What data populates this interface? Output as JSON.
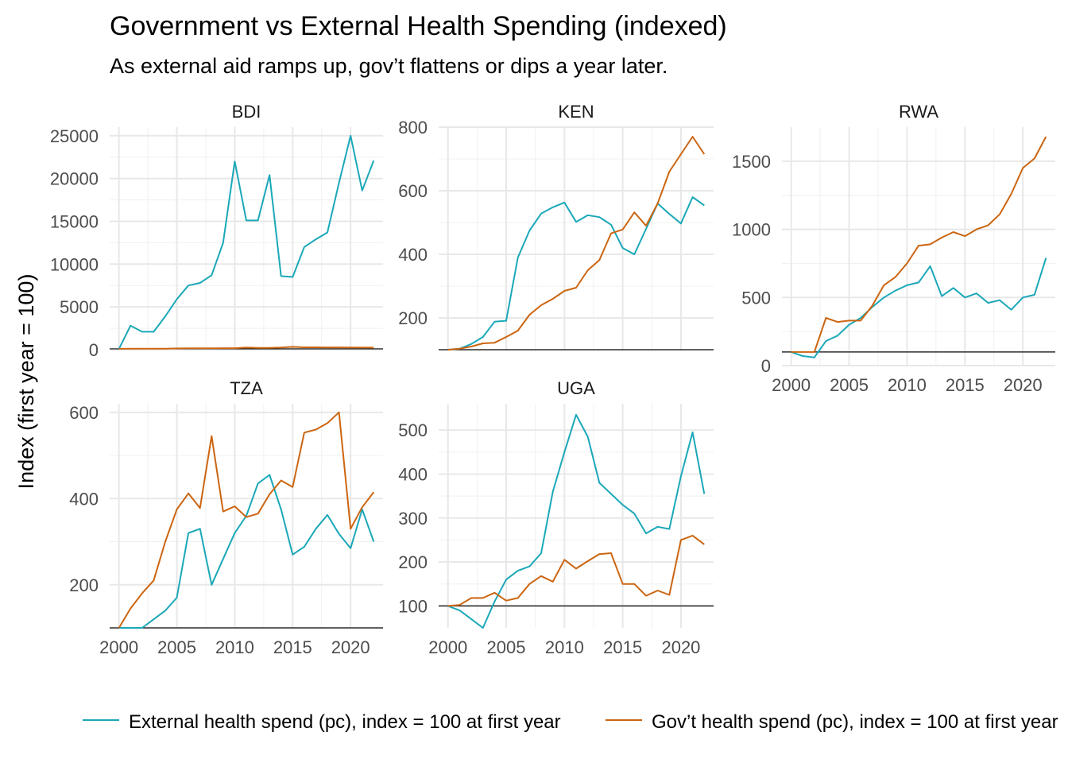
{
  "chart_data": {
    "type": "line",
    "title": "Government vs External Health Spending (indexed)",
    "subtitle": "As external aid ramps up, gov’t flattens or dips a year later.",
    "ylabel": "Index (first year = 100)",
    "xlabel": "",
    "grid": true,
    "legend_position": "bottom",
    "reference_line": 100,
    "colors": {
      "external": "#1ba8b8",
      "government": "#cc6511"
    },
    "legend": [
      {
        "key": "external",
        "label": "External health spend (pc), index = 100 at first year"
      },
      {
        "key": "government",
        "label": "Gov’t health spend (pc), index = 100 at first year"
      }
    ],
    "years": [
      2000,
      2001,
      2002,
      2003,
      2004,
      2005,
      2006,
      2007,
      2008,
      2009,
      2010,
      2011,
      2012,
      2013,
      2014,
      2015,
      2016,
      2017,
      2018,
      2019,
      2020,
      2021,
      2022
    ],
    "panels": [
      {
        "name": "BDI",
        "xlim": [
          1999.2,
          2022.8
        ],
        "ylim": [
          0,
          26000
        ],
        "yticks": [
          0,
          5000,
          10000,
          15000,
          20000,
          25000
        ],
        "xticks": [],
        "series": {
          "external": [
            100,
            2800,
            2100,
            2100,
            3900,
            5900,
            7500,
            7800,
            8700,
            12500,
            22000,
            15100,
            15100,
            20400,
            8600,
            8500,
            12000,
            12900,
            13700,
            19500,
            25000,
            18600,
            22100
          ],
          "government": [
            100,
            110,
            110,
            110,
            120,
            150,
            160,
            160,
            170,
            180,
            180,
            250,
            200,
            200,
            260,
            330,
            280,
            280,
            270,
            270,
            260,
            250,
            240
          ]
        }
      },
      {
        "name": "KEN",
        "xlim": [
          1999.2,
          2022.8
        ],
        "ylim": [
          100,
          800
        ],
        "yticks": [
          200,
          400,
          600,
          800
        ],
        "xticks": [],
        "series": {
          "external": [
            100,
            103,
            118,
            140,
            188,
            191,
            390,
            475,
            528,
            548,
            563,
            502,
            523,
            517,
            493,
            420,
            400,
            480,
            560,
            527,
            497,
            580,
            554
          ],
          "government": [
            100,
            103,
            110,
            120,
            122,
            140,
            160,
            210,
            240,
            260,
            285,
            295,
            350,
            382,
            466,
            478,
            532,
            490,
            560,
            660,
            715,
            770,
            715
          ]
        }
      },
      {
        "name": "RWA",
        "xlim": [
          1999.2,
          2022.8
        ],
        "ylim": [
          0,
          1750
        ],
        "yticks": [
          0,
          500,
          1000,
          1500
        ],
        "xticks": [
          2000,
          2005,
          2010,
          2015,
          2020
        ],
        "series": {
          "external": [
            100,
            70,
            60,
            180,
            220,
            300,
            350,
            430,
            500,
            550,
            590,
            610,
            730,
            510,
            570,
            500,
            530,
            460,
            480,
            410,
            500,
            520,
            790
          ],
          "government": [
            100,
            100,
            100,
            350,
            320,
            330,
            330,
            440,
            590,
            650,
            750,
            880,
            890,
            940,
            980,
            950,
            1000,
            1030,
            1110,
            1260,
            1450,
            1520,
            1680
          ]
        }
      },
      {
        "name": "TZA",
        "xlim": [
          1999.2,
          2022.8
        ],
        "ylim": [
          100,
          620
        ],
        "yticks": [
          200,
          400,
          600
        ],
        "xticks": [
          2000,
          2005,
          2010,
          2015,
          2020
        ],
        "series": {
          "external": [
            100,
            100,
            100,
            120,
            140,
            170,
            320,
            330,
            200,
            260,
            320,
            360,
            435,
            455,
            375,
            270,
            288,
            330,
            362,
            318,
            285,
            375,
            300
          ],
          "government": [
            100,
            145,
            180,
            210,
            300,
            375,
            412,
            378,
            545,
            370,
            382,
            357,
            365,
            410,
            442,
            427,
            553,
            560,
            575,
            600,
            330,
            380,
            415
          ]
        }
      },
      {
        "name": "UGA",
        "xlim": [
          1999.2,
          2022.8
        ],
        "ylim": [
          50,
          560
        ],
        "yticks": [
          100,
          200,
          300,
          400,
          500
        ],
        "xticks": [
          2000,
          2005,
          2010,
          2015,
          2020
        ],
        "series": {
          "external": [
            100,
            90,
            70,
            50,
            110,
            160,
            180,
            190,
            220,
            360,
            450,
            535,
            485,
            380,
            355,
            330,
            310,
            265,
            280,
            275,
            395,
            495,
            355
          ],
          "government": [
            100,
            102,
            118,
            118,
            130,
            112,
            118,
            150,
            168,
            155,
            205,
            185,
            202,
            218,
            220,
            150,
            150,
            123,
            135,
            125,
            250,
            260,
            240
          ]
        }
      }
    ]
  }
}
